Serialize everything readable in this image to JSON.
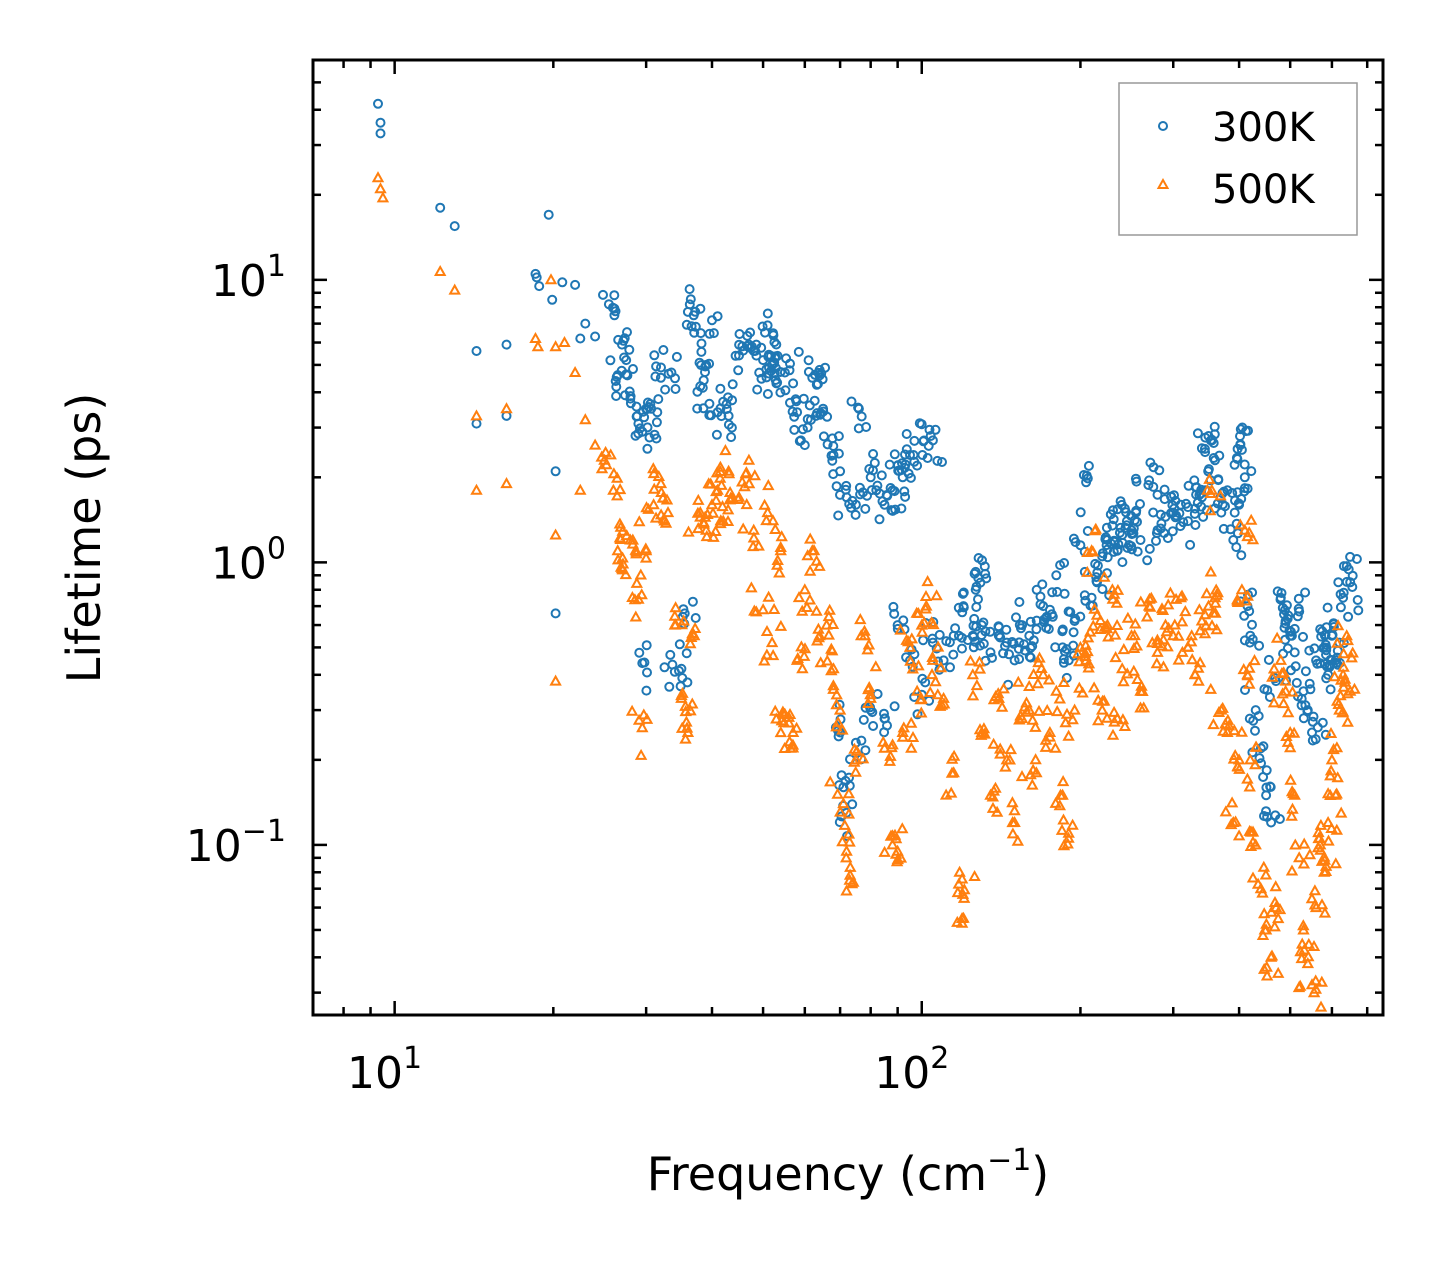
{
  "chart_data": {
    "type": "scatter",
    "xscale": "log",
    "yscale": "log",
    "xlabel": {
      "text": "Frequency (cm",
      "sup": "−1",
      "tail": ")"
    },
    "ylabel": "Lifetime (ps)",
    "xlim": [
      7.0,
      750.0
    ],
    "ylim": [
      0.025,
      60.0
    ],
    "xticks": [
      {
        "value": 10,
        "base": "10",
        "exp": "1"
      },
      {
        "value": 100,
        "base": "10",
        "exp": "2"
      }
    ],
    "yticks": [
      {
        "value": 0.1,
        "base": "10",
        "exp": "−1"
      },
      {
        "value": 1,
        "base": "10",
        "exp": "0"
      },
      {
        "value": 10,
        "base": "10",
        "exp": "1"
      }
    ],
    "legend_position": "top-right",
    "series": [
      {
        "name": "300K",
        "marker": "circle-open",
        "color": "#1f77b4",
        "points": [
          [
            9.3,
            42
          ],
          [
            9.4,
            36
          ],
          [
            9.4,
            33
          ],
          [
            12.2,
            18
          ],
          [
            13,
            15.5
          ],
          [
            14.3,
            5.6
          ],
          [
            14.3,
            3.1
          ],
          [
            16.3,
            5.9
          ],
          [
            16.3,
            3.3
          ],
          [
            18.5,
            10.5
          ],
          [
            18.6,
            10.2
          ],
          [
            18.8,
            9.5
          ],
          [
            19.6,
            17
          ],
          [
            19.9,
            8.5
          ],
          [
            20.2,
            2.1
          ],
          [
            20.2,
            0.66
          ],
          [
            20.8,
            9.8
          ],
          [
            22,
            9.6
          ],
          [
            22.5,
            6.2
          ],
          [
            23,
            7
          ],
          [
            24,
            6.3
          ],
          [
            25.5,
            8.2
          ],
          [
            26.5,
            4.6
          ],
          [
            27,
            5.9
          ],
          [
            27.5,
            5.2
          ],
          [
            28,
            3.8
          ],
          [
            29,
            3.1
          ],
          [
            29.5,
            2.9
          ],
          [
            29.5,
            0.44
          ],
          [
            30,
            3.5
          ],
          [
            31.5,
            3.4
          ],
          [
            32,
            4.5
          ],
          [
            33.5,
            4.7
          ],
          [
            34,
            0.41
          ],
          [
            35,
            0.42
          ],
          [
            35.5,
            0.66
          ],
          [
            36,
            7.7
          ],
          [
            37,
            6.5
          ],
          [
            38,
            4.2
          ],
          [
            39,
            5
          ],
          [
            40,
            7.2
          ],
          [
            41,
            3.4
          ],
          [
            42,
            3.7
          ],
          [
            43,
            3.3
          ],
          [
            45,
            5.4
          ],
          [
            47,
            5.9
          ],
          [
            48,
            5.6
          ],
          [
            50,
            5.2
          ],
          [
            51,
            6.9
          ],
          [
            52,
            5
          ],
          [
            52.5,
            5.1
          ],
          [
            53,
            4.3
          ],
          [
            55,
            4.7
          ],
          [
            57,
            4.3
          ],
          [
            58,
            3.4
          ],
          [
            60,
            2.6
          ],
          [
            62,
            4.5
          ],
          [
            63,
            3.3
          ],
          [
            64,
            4.8
          ],
          [
            65,
            3.5
          ],
          [
            68,
            2.4
          ],
          [
            70,
            2.1
          ],
          [
            72,
            1.7
          ],
          [
            75,
            1.6
          ],
          [
            76,
            3.5
          ],
          [
            80,
            2
          ],
          [
            82,
            1.8
          ],
          [
            85,
            1.6
          ],
          [
            88,
            1.8
          ],
          [
            90,
            2.2
          ],
          [
            92,
            2
          ],
          [
            95,
            2.4
          ],
          [
            98,
            2.2
          ],
          [
            101,
            2.7
          ],
          [
            104,
            2.8
          ],
          [
            70,
            0.25
          ],
          [
            71,
            0.16
          ],
          [
            72,
            0.13
          ],
          [
            75,
            0.23
          ],
          [
            80,
            0.3
          ],
          [
            85,
            0.28
          ],
          [
            90,
            0.6
          ],
          [
            95,
            0.45
          ],
          [
            100,
            0.34
          ],
          [
            105,
            0.52
          ],
          [
            110,
            0.45
          ],
          [
            115,
            0.55
          ],
          [
            120,
            0.7
          ],
          [
            125,
            0.55
          ],
          [
            127,
            0.82
          ],
          [
            128,
            0.88
          ],
          [
            130,
            0.6
          ],
          [
            135,
            0.48
          ],
          [
            140,
            0.55
          ],
          [
            145,
            0.52
          ],
          [
            150,
            0.45
          ],
          [
            155,
            0.6
          ],
          [
            160,
            0.55
          ],
          [
            165,
            0.58
          ],
          [
            170,
            0.7
          ],
          [
            175,
            0.68
          ],
          [
            180,
            0.9
          ],
          [
            185,
            0.5
          ],
          [
            190,
            0.45
          ],
          [
            195,
            0.62
          ],
          [
            200,
            1.15
          ],
          [
            205,
            1.92
          ],
          [
            210,
            0.75
          ],
          [
            215,
            0.85
          ],
          [
            220,
            1.05
          ],
          [
            225,
            1.2
          ],
          [
            230,
            1.35
          ],
          [
            235,
            1.1
          ],
          [
            240,
            1.25
          ],
          [
            245,
            1.4
          ],
          [
            250,
            1.3
          ],
          [
            255,
            1.5
          ],
          [
            260,
            1.2
          ],
          [
            270,
            1.95
          ],
          [
            275,
            1.85
          ],
          [
            280,
            1.3
          ],
          [
            290,
            1.45
          ],
          [
            300,
            1.5
          ],
          [
            310,
            1.6
          ],
          [
            320,
            1.4
          ],
          [
            330,
            1.55
          ],
          [
            340,
            1.7
          ],
          [
            345,
            1.8
          ],
          [
            350,
            2.8
          ],
          [
            355,
            2.7
          ],
          [
            360,
            2.3
          ],
          [
            370,
            1.5
          ],
          [
            380,
            1.8
          ],
          [
            390,
            1.2
          ],
          [
            400,
            1.6
          ],
          [
            402,
            2.6
          ],
          [
            405,
            2.5
          ],
          [
            410,
            2
          ],
          [
            415,
            0.7
          ],
          [
            420,
            0.55
          ],
          [
            430,
            0.3
          ],
          [
            440,
            0.22
          ],
          [
            450,
            0.15
          ],
          [
            460,
            0.12
          ],
          [
            470,
            0.38
          ],
          [
            480,
            0.75
          ],
          [
            490,
            0.62
          ],
          [
            500,
            0.55
          ],
          [
            510,
            0.48
          ],
          [
            520,
            0.67
          ],
          [
            530,
            0.35
          ],
          [
            540,
            0.3
          ],
          [
            550,
            0.25
          ],
          [
            560,
            0.45
          ],
          [
            570,
            0.58
          ],
          [
            580,
            0.5
          ],
          [
            590,
            0.4
          ],
          [
            600,
            0.55
          ],
          [
            610,
            0.45
          ],
          [
            620,
            0.52
          ],
          [
            630,
            0.75
          ],
          [
            640,
            0.97
          ],
          [
            650,
            0.85
          ]
        ]
      },
      {
        "name": "500K",
        "marker": "triangle-open",
        "color": "#ff7f0e",
        "points": [
          [
            9.3,
            23
          ],
          [
            9.4,
            21
          ],
          [
            9.5,
            19.5
          ],
          [
            12.2,
            10.7
          ],
          [
            13,
            9.2
          ],
          [
            14.3,
            3.3
          ],
          [
            14.3,
            1.8
          ],
          [
            16.3,
            3.5
          ],
          [
            16.3,
            1.9
          ],
          [
            18.5,
            6.2
          ],
          [
            18.7,
            5.8
          ],
          [
            19.8,
            10
          ],
          [
            20.2,
            5.8
          ],
          [
            20.2,
            1.25
          ],
          [
            20.2,
            0.38
          ],
          [
            21,
            6
          ],
          [
            22,
            4.7
          ],
          [
            22.5,
            1.8
          ],
          [
            23,
            3.2
          ],
          [
            24,
            2.6
          ],
          [
            25,
            2.3
          ],
          [
            26,
            1.8
          ],
          [
            26.5,
            1.1
          ],
          [
            27,
            0.95
          ],
          [
            28,
            1.2
          ],
          [
            29,
            0.74
          ],
          [
            29.5,
            0.26
          ],
          [
            30,
            1.1
          ],
          [
            31,
            1.6
          ],
          [
            32,
            1.9
          ],
          [
            33,
            1.5
          ],
          [
            34,
            0.6
          ],
          [
            35,
            0.33
          ],
          [
            36,
            0.25
          ],
          [
            37,
            0.55
          ],
          [
            38,
            1.5
          ],
          [
            39,
            1.3
          ],
          [
            40,
            1.6
          ],
          [
            41,
            1.8
          ],
          [
            42,
            1.4
          ],
          [
            43,
            2.1
          ],
          [
            45,
            1.7
          ],
          [
            47,
            2.3
          ],
          [
            48,
            1.3
          ],
          [
            50,
            0.68
          ],
          [
            51,
            1.5
          ],
          [
            52,
            0.52
          ],
          [
            54,
            1.1
          ],
          [
            55,
            0.29
          ],
          [
            56,
            0.27
          ],
          [
            57,
            0.25
          ],
          [
            58,
            0.45
          ],
          [
            60,
            0.8
          ],
          [
            62,
            1.1
          ],
          [
            64,
            0.55
          ],
          [
            66,
            0.6
          ],
          [
            68,
            0.42
          ],
          [
            70,
            0.3
          ],
          [
            71,
            0.14
          ],
          [
            72,
            0.095
          ],
          [
            73,
            0.075
          ],
          [
            75,
            0.2
          ],
          [
            78,
            0.55
          ],
          [
            80,
            0.33
          ],
          [
            85,
            0.22
          ],
          [
            88,
            0.1
          ],
          [
            90,
            0.095
          ],
          [
            92,
            0.25
          ],
          [
            95,
            0.5
          ],
          [
            98,
            0.35
          ],
          [
            100,
            0.6
          ],
          [
            102,
            0.7
          ],
          [
            105,
            0.45
          ],
          [
            110,
            0.33
          ],
          [
            115,
            0.18
          ],
          [
            118,
            0.08
          ],
          [
            120,
            0.055
          ],
          [
            125,
            0.4
          ],
          [
            130,
            0.25
          ],
          [
            135,
            0.15
          ],
          [
            140,
            0.33
          ],
          [
            145,
            0.2
          ],
          [
            150,
            0.12
          ],
          [
            155,
            0.28
          ],
          [
            160,
            0.3
          ],
          [
            165,
            0.18
          ],
          [
            170,
            0.4
          ],
          [
            175,
            0.25
          ],
          [
            180,
            0.35
          ],
          [
            185,
            0.15
          ],
          [
            190,
            0.11
          ],
          [
            195,
            0.3
          ],
          [
            200,
            0.5
          ],
          [
            205,
            0.45
          ],
          [
            210,
            1.1
          ],
          [
            215,
            0.65
          ],
          [
            220,
            0.3
          ],
          [
            225,
            0.6
          ],
          [
            230,
            0.8
          ],
          [
            235,
            0.28
          ],
          [
            240,
            0.42
          ],
          [
            250,
            0.55
          ],
          [
            260,
            0.35
          ],
          [
            270,
            0.7
          ],
          [
            280,
            0.48
          ],
          [
            290,
            0.6
          ],
          [
            300,
            0.55
          ],
          [
            310,
            0.75
          ],
          [
            320,
            0.5
          ],
          [
            330,
            0.4
          ],
          [
            340,
            0.62
          ],
          [
            350,
            0.7
          ],
          [
            355,
            1.8
          ],
          [
            360,
            0.75
          ],
          [
            370,
            0.3
          ],
          [
            380,
            0.25
          ],
          [
            390,
            0.12
          ],
          [
            400,
            0.2
          ],
          [
            405,
            0.8
          ],
          [
            410,
            1.3
          ],
          [
            415,
            0.4
          ],
          [
            420,
            0.2
          ],
          [
            430,
            0.1
          ],
          [
            440,
            0.07
          ],
          [
            450,
            0.05
          ],
          [
            460,
            0.04
          ],
          [
            470,
            0.06
          ],
          [
            480,
            0.45
          ],
          [
            490,
            0.35
          ],
          [
            500,
            0.25
          ],
          [
            510,
            0.15
          ],
          [
            520,
            0.09
          ],
          [
            530,
            0.05
          ],
          [
            540,
            0.038
          ],
          [
            550,
            0.032
          ],
          [
            560,
            0.06
          ],
          [
            570,
            0.1
          ],
          [
            580,
            0.08
          ],
          [
            590,
            0.12
          ],
          [
            600,
            0.2
          ],
          [
            610,
            0.15
          ],
          [
            620,
            0.3
          ],
          [
            630,
            0.4
          ],
          [
            640,
            0.55
          ],
          [
            650,
            0.35
          ]
        ]
      }
    ]
  }
}
